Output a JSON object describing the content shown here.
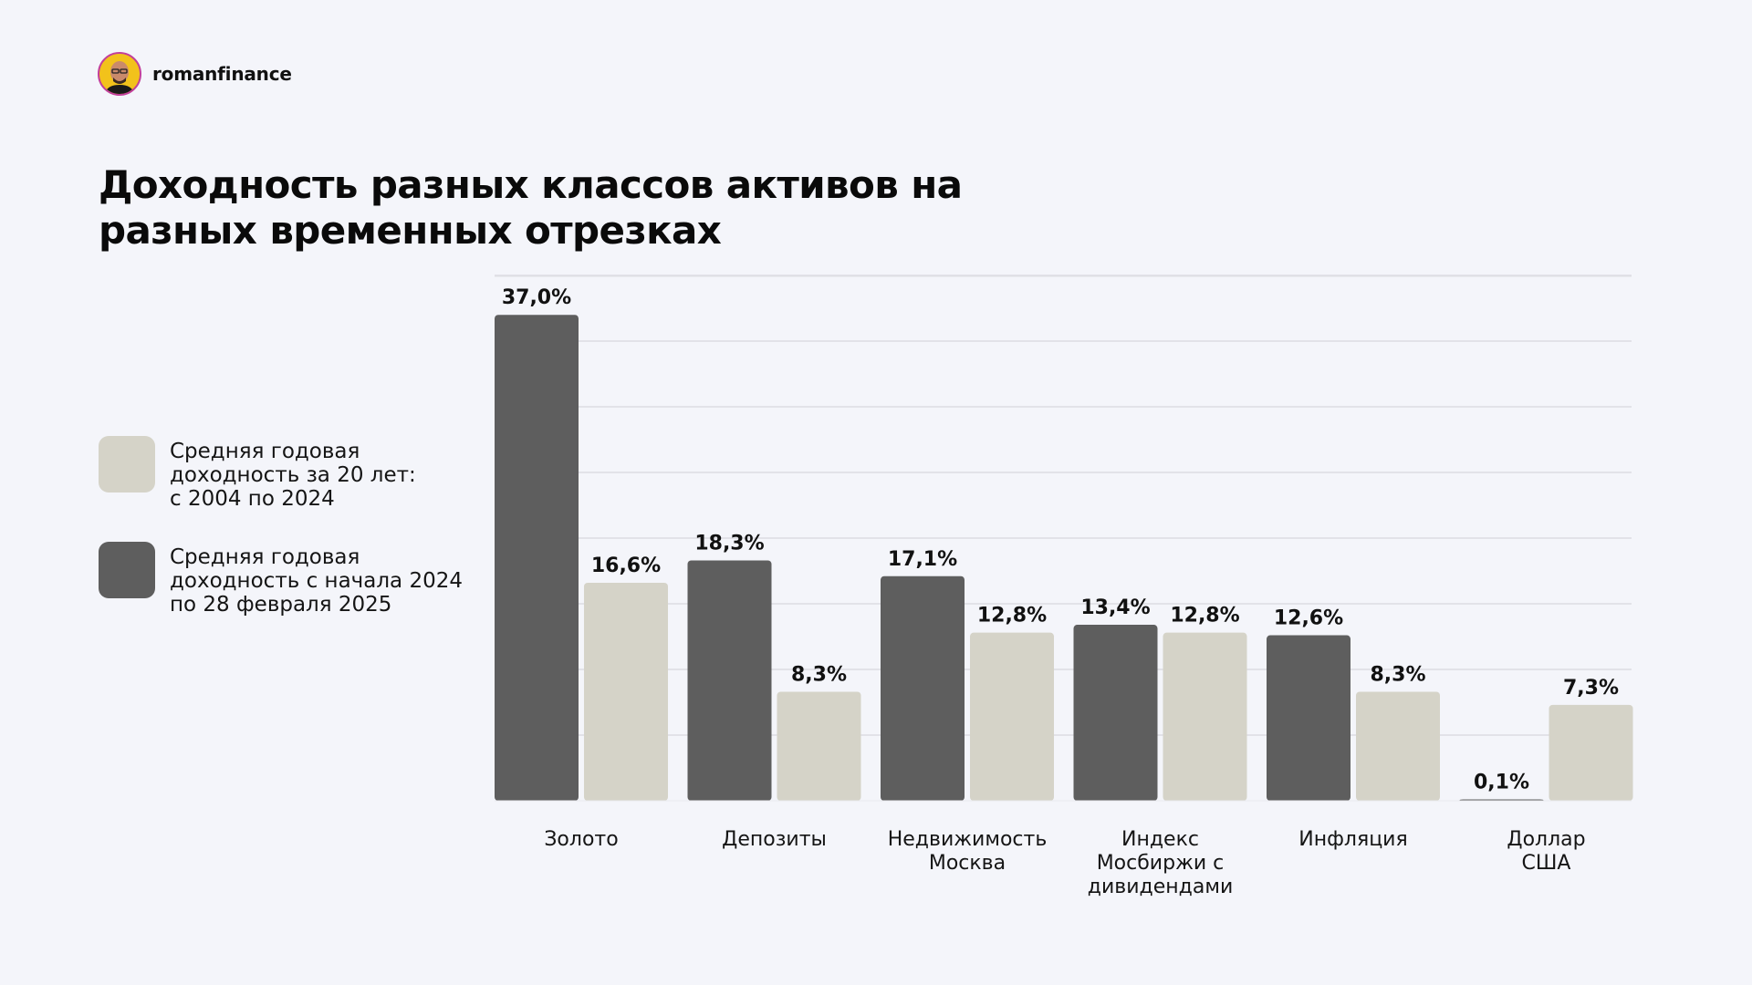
{
  "brand": {
    "name": "romanfinance"
  },
  "title": {
    "line1": "Доходность разных классов активов на",
    "line2": "разных временных отрезках"
  },
  "legend": {
    "items": [
      {
        "lines": [
          "Средняя годовая",
          "доходность за 20 лет:",
          "с 2004 по 2024"
        ],
        "color": "#d5d3c8"
      },
      {
        "lines": [
          "Средняя годовая",
          "доходность с начала 2024",
          "по 28 февраля 2025"
        ],
        "color": "#5e5e5e"
      }
    ]
  },
  "chart_data": {
    "type": "bar",
    "title": "Доходность разных классов активов на разных временных отрезках",
    "categories": [
      [
        "Золото"
      ],
      [
        "Депозиты"
      ],
      [
        "Недвижимость",
        "Москва"
      ],
      [
        "Индекс",
        "Мосбиржи с",
        "дивидендами"
      ],
      [
        "Инфляция"
      ],
      [
        "Доллар",
        "США"
      ]
    ],
    "series": [
      {
        "name": "Средняя годовая доходность с начала 2024 по 28 февраля 2025",
        "color": "#5e5e5e",
        "values": [
          37.0,
          18.3,
          17.1,
          13.4,
          12.6,
          0.1
        ],
        "labels": [
          "37,0%",
          "18,3%",
          "17,1%",
          "13,4%",
          "12,6%",
          "0,1%"
        ]
      },
      {
        "name": "Средняя годовая доходность за 20 лет: с 2004 по 2024",
        "color": "#d5d3c8",
        "values": [
          16.6,
          8.3,
          12.8,
          12.8,
          8.3,
          7.3
        ],
        "labels": [
          "16,6%",
          "8,3%",
          "12,8%",
          "12,8%",
          "8,3%",
          "7,3%"
        ]
      }
    ],
    "ylim": [
      0,
      40
    ],
    "grid": true,
    "legend_position": "left"
  }
}
